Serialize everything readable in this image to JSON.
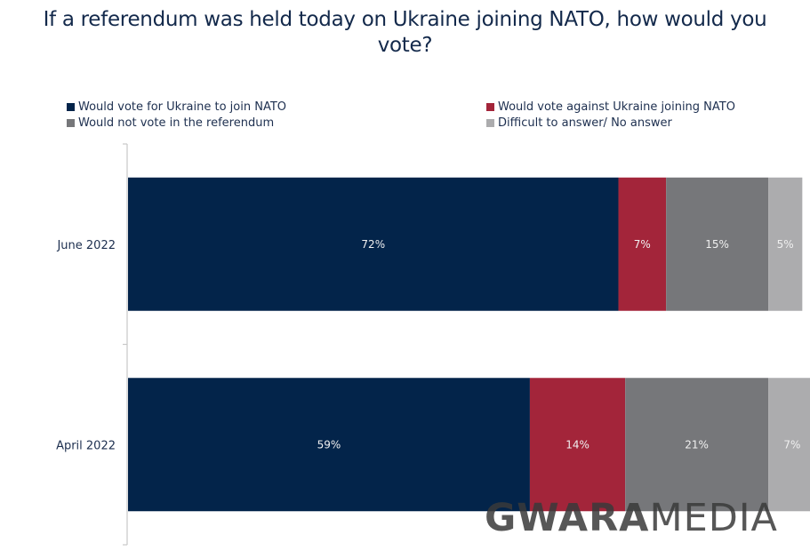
{
  "chart_data": {
    "type": "bar",
    "orientation": "horizontal",
    "stacked": true,
    "title": "If a referendum was held today on Ukraine joining NATO, how would you vote?",
    "title_lines": [
      "If a referendum was held today on Ukraine joining NATO, how would you",
      "vote?"
    ],
    "categories": [
      "June 2022",
      "April 2022"
    ],
    "series": [
      {
        "name": "Would vote for Ukraine to join NATO",
        "color": "#03244a",
        "values": [
          72,
          59
        ],
        "labels": [
          "72%",
          "59%"
        ]
      },
      {
        "name": "Would vote against Ukraine joining NATO",
        "color": "#a3253a",
        "values": [
          7,
          14
        ],
        "labels": [
          "7%",
          "14%"
        ]
      },
      {
        "name": "Would not vote in the referendum",
        "color": "#76777a",
        "values": [
          15,
          21
        ],
        "labels": [
          "15%",
          "21%"
        ]
      },
      {
        "name": "Difficult to answer/ No answer",
        "color": "#acacae",
        "values": [
          5,
          7
        ],
        "labels": [
          "5%",
          "7%"
        ]
      }
    ],
    "xlim": [
      0,
      100
    ],
    "xlabel": "",
    "ylabel": "",
    "grid": false,
    "legend_position": "top"
  },
  "watermark": {
    "bold": "GWARA",
    "light": "MEDIA"
  }
}
